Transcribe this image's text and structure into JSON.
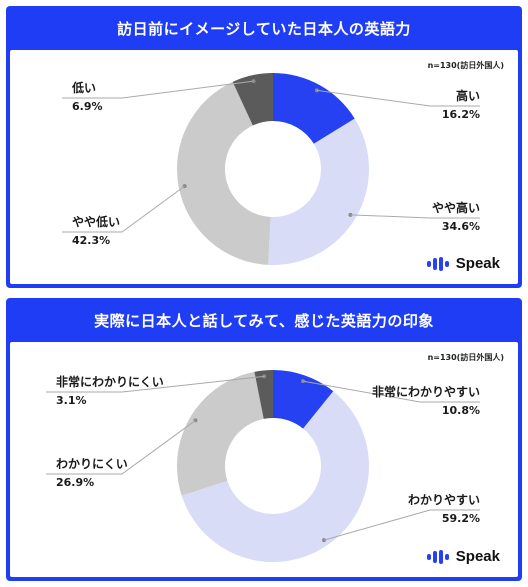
{
  "charts": [
    {
      "title": "訪日前にイメージしていた日本人の英語力",
      "note": "n=130(訪日外国人)",
      "brand": "Speak"
    },
    {
      "title": "実際に日本人と話してみて、感じた英語力の印象",
      "note": "n=130(訪日外国人)",
      "brand": "Speak"
    }
  ],
  "chart_data": [
    {
      "type": "pie",
      "title": "訪日前にイメージしていた日本人の英語力",
      "note": "n=130(訪日外国人)",
      "slices": [
        {
          "label": "高い",
          "value": 16.2,
          "display": "16.2%",
          "color": "#2541f2"
        },
        {
          "label": "やや高い",
          "value": 34.6,
          "display": "34.6%",
          "color": "#d9dcf7"
        },
        {
          "label": "やや低い",
          "value": 42.3,
          "display": "42.3%",
          "color": "#cbcbcb"
        },
        {
          "label": "低い",
          "value": 6.9,
          "display": "6.9%",
          "color": "#5b5b5b"
        }
      ]
    },
    {
      "type": "pie",
      "title": "実際に日本人と話してみて、感じた英語力の印象",
      "note": "n=130(訪日外国人)",
      "slices": [
        {
          "label": "非常にわかりやすい",
          "value": 10.8,
          "display": "10.8%",
          "color": "#2541f2"
        },
        {
          "label": "わかりやすい",
          "value": 59.2,
          "display": "59.2%",
          "color": "#d9dcf7"
        },
        {
          "label": "わかりにくい",
          "value": 26.9,
          "display": "26.9%",
          "color": "#cbcbcb"
        },
        {
          "label": "非常にわかりにくい",
          "value": 3.1,
          "display": "3.1%",
          "color": "#5b5b5b"
        }
      ]
    }
  ]
}
